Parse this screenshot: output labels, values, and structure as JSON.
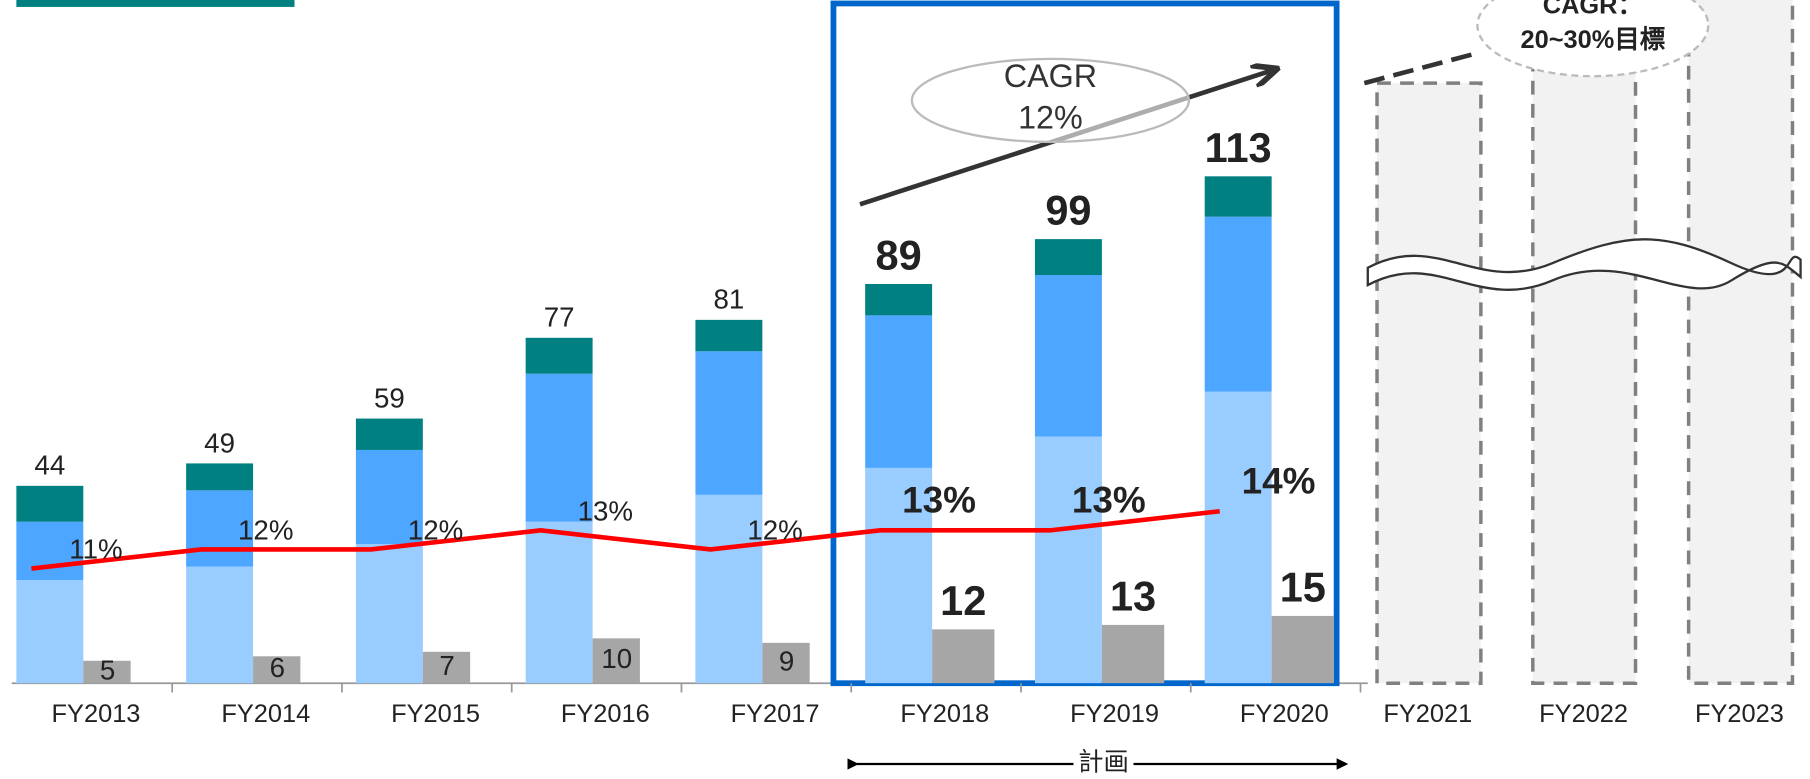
{
  "chart_data": {
    "type": "bar",
    "categories": [
      "FY2013",
      "FY2014",
      "FY2015",
      "FY2016",
      "FY2017",
      "FY2018",
      "FY2019",
      "FY2020",
      "FY2021",
      "FY2022",
      "FY2023"
    ],
    "series": [
      {
        "color": "#99ccff",
        "values": [
          23,
          26,
          31,
          36,
          42,
          48,
          55,
          65,
          null,
          null,
          null
        ]
      },
      {
        "color": "#4da6ff",
        "values": [
          13,
          17,
          21,
          33,
          32,
          34,
          36,
          39,
          null,
          null,
          null
        ]
      },
      {
        "color": "#008080",
        "values": [
          8,
          6,
          7,
          8,
          7,
          7,
          8,
          9,
          null,
          null,
          null
        ]
      }
    ],
    "totals": [
      44,
      49,
      59,
      77,
      81,
      89,
      99,
      113,
      null,
      null,
      null
    ],
    "secondary_bars": {
      "color": "#a6a6a6",
      "values": [
        5,
        6,
        7,
        10,
        9,
        12,
        13,
        15,
        null,
        null,
        null
      ]
    },
    "line": {
      "color": "#ff0000",
      "axis": "y2",
      "values": [
        11,
        12,
        12,
        13,
        12,
        13,
        13,
        14,
        null,
        null,
        null
      ],
      "value_labels": [
        "11%",
        "12%",
        "12%",
        "13%",
        "12%",
        "13%",
        "13%",
        "14%",
        null,
        null,
        null
      ]
    },
    "ylim": [
      0,
      115
    ],
    "y2lim": [
      5,
      32
    ],
    "cagr_label": [
      "CAGR",
      "12%"
    ],
    "target_label": [
      "CAGR：",
      "20~30%目標"
    ],
    "plan_label": "計画"
  }
}
